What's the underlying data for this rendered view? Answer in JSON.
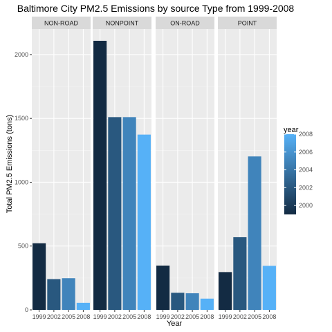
{
  "chart_data": {
    "type": "bar",
    "title": "Baltimore City PM2.5 Emissions by source Type from 1999-2008",
    "xlabel": "Year",
    "ylabel": "Total PM2.5 Emissions (tons)",
    "categories": [
      "1999",
      "2002",
      "2005",
      "2008"
    ],
    "ylim": [
      0,
      2200
    ],
    "yticks": [
      0,
      500,
      1000,
      1500,
      2000
    ],
    "grid": true,
    "legend": {
      "title": "year",
      "position": "right",
      "ticks": [
        "2000",
        "2002",
        "2004",
        "2006",
        "2008"
      ],
      "range": [
        1999,
        2008
      ],
      "color_low": "#132b43",
      "color_high": "#56b1f7"
    },
    "panels": [
      {
        "name": "NON-ROAD",
        "values": [
          522,
          241,
          248,
          55
        ]
      },
      {
        "name": "NONPOINT",
        "values": [
          2108,
          1510,
          1510,
          1373
        ]
      },
      {
        "name": "ON-ROAD",
        "values": [
          347,
          134,
          130,
          88
        ]
      },
      {
        "name": "POINT",
        "values": [
          296,
          569,
          1202,
          345
        ]
      }
    ]
  }
}
